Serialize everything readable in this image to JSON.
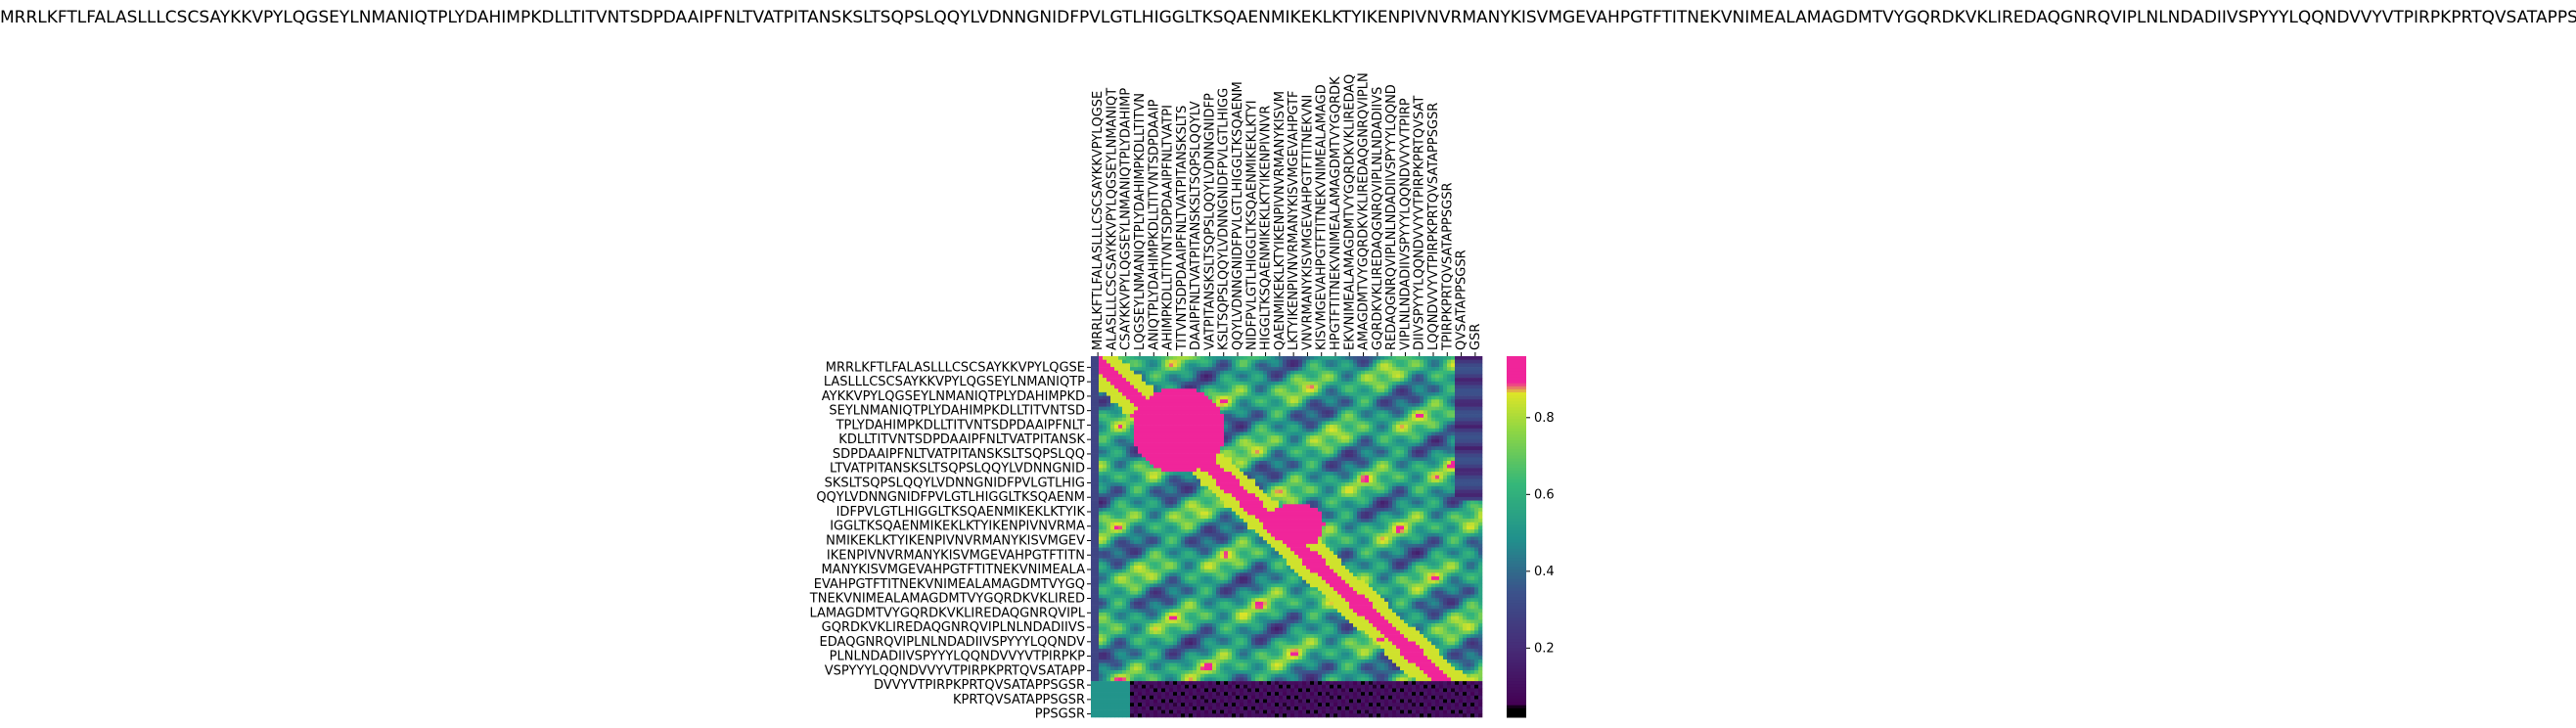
{
  "chart_data": {
    "type": "heatmap",
    "title": "MRRLKFTLFALASLLLCSCSAYKKVPYLQGSEYLNMANIQTPLYDAHIMPKDLLTITVNTSDPDAAIPFNLTVATPITANSKSLTSQPSLQQYLVDNNGNIDFPVLGTLHIGGLTKSQAENMIKEKLKTYIKENPIVNVRMANYKISVMGEVAHPGTFTITNEKVNIMEALAMAGDMTVYGQRDKVKLIREDAQGNRQVIPLNLNDADIIVSPYYYLQQNDVVYVTPIRPKPRTQVSATAPPSGSR",
    "row_labels": [
      "MRRLKFTLFALASLLLCSCSAYKKVPYLQGSE",
      "LASLLLCSCSAYKKVPYLQGSEYLNMANIQTP",
      "AYKKVPYLQGSEYLNMANIQTPLYDAHIMPKD",
      "SEYLNMANIQTPLYDAHIMPKDLLTITVNTSD",
      "TPLYDAHIMPKDLLTITVNTSDPDAAIPFNLT",
      "KDLLTITVNTSDPDAAIPFNLTVATPITANSK",
      "SDPDAAIPFNLTVATPITANSKSLTSQPSLQQ",
      "LTVATPITANSKSLTSQPSLQQYLVDNNGNID",
      "SKSLTSQPSLQQYLVDNNGNIDFPVLGTLHIG",
      "QQYLVDNNGNIDFPVLGTLHIGGLTKSQAENM",
      "IDFPVLGTLHIGGLTKSQAENMIKEKLKTYIK",
      "IGGLTKSQAENMIKEKLKTYIKENPIVNVRMA",
      "NMIKEKLKTYIKENPIVNVRMANYKISVMGEV",
      "IKENPIVNVRMANYKISVMGEVAHPGTFTITN",
      "MANYKISVMGEVAHPGTFTITNEKVNIMEALA",
      "EVAHPGTFTITNEKVNIMEALAMAGDMTVYGQ",
      "TNEKVNIMEALAMAGDMTVYGQRDKVKLIRED",
      "LAMAGDMTVYGQRDKVKLIREDAQGNRQVIPL",
      "GQRDKVKLIREDAQGNRQVIPLNLNDADIIVS",
      "EDAQGNRQVIPLNLNDADIIVSPYYYLQQNDV",
      "PLNLNDADIIVSPYYYLQQNDVVYVTPIRPKP",
      "VSPYYYLQQNDVVYVTPIRPKPRTQVSATAPP",
      "DVVYVTPIRPKPRTQVSATAPPSGSR",
      "KPRTQVSATAPPSGSR",
      "PPSGSR"
    ],
    "col_labels": [
      "MRRLKFTLFALASLLLCSCSAYKKVPYLQGSE",
      "ALASLLLCSCSAYKKVPYLQGSEYLNMANIQT",
      "CSAYKKVPYLQGSEYLNMANIQTPLYDAHIMP",
      "LQGSEYLNMANIQTPLYDAHIMPKDLLTITVN",
      "ANIQTPLYDAHIMPKDLLTITVNTSDPDAAIP",
      "AHIMPKDLLTITVNTSDPDAAIPFNLTVATPI",
      "TITVNTSDPDAAIPFNLTVATPITANSKSLTS",
      "DAAIPFNLTVATPITANSKSLTSQPSLQQYLV",
      "VATPITANSKSLTSQPSLQQYLVDNNGNIDFP",
      "KSLTSQPSLQQYLVDNNGNIDFPVLGTLHIGG",
      "QQYLVDNNGNIDFPVLGTLHIGGLTKSQAENM",
      "NIDFPVLGTLHIGGLTKSQAENMIKEKLKTYI",
      "HIGGLTKSQAENMIKEKLKTYIKENPIVNVR",
      "QAENMIKEKLKTYIKENPIVNVRMANYKISVM",
      "LKTYIKENPIVNVRMANYKISVMGEVAHPGTF",
      "VNVRMANYKISVMGEVAHPGTFTITNEKVNI",
      "KISVMGEVAHPGTFTITNEKVNIMEALAMAGD",
      "HPGTFTITNEKVNIMEALAMAGDMTVYGQRDK",
      "EKVNIMEALAMAGDMTVYGQRDKVKLIREDAQ",
      "AMAGDMTVYGQRDKVKLIREDAQGNRQVIPLN",
      "GQRDKVKLIREDAQGNRQVIPLNLNDADIIVS",
      "REDAQGNRQVIPLNLNDADIIVSPYYYLQQND",
      "VIPLNLNDADIIVSPYYYLQQNDVVYVTPIRP",
      "DIIVSPYYYLQQNDVVYVTPIRPKPRTQVSAT",
      "LQQNDVVYVTPIRPKPRTQVSATAPPSGSR",
      "TPIRPKPRTQVSATAPPSGSR",
      "QVSATAPPSGSR",
      "GSR"
    ],
    "colorbar": {
      "ticks": [
        0.2,
        0.4,
        0.6,
        0.8
      ],
      "range": [
        0.02,
        0.96
      ]
    },
    "colors": {
      "high": "#f0259a",
      "low": "#000000"
    }
  }
}
